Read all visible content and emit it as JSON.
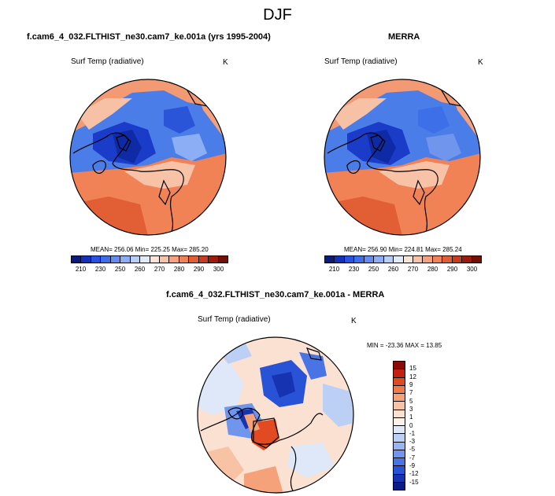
{
  "figure": {
    "title": "DJF"
  },
  "panels": {
    "model": {
      "title": "f.cam6_4_032.FLTHIST_ne30.cam7_ke.001a (yrs 1995-2004)",
      "variable": "Surf Temp (radiative)",
      "units": "K",
      "stats": "MEAN= 256.06  Min= 225.25  Max= 285.20"
    },
    "obs": {
      "title": "MERRA",
      "variable": "Surf Temp (radiative)",
      "units": "K",
      "stats": "MEAN= 256.90  Min= 224.81  Max= 285.24"
    },
    "diff": {
      "title": "f.cam6_4_032.FLTHIST_ne30.cam7_ke.001a - MERRA",
      "variable": "Surf Temp (radiative)",
      "units": "K",
      "stats": "MIN = -23.36 MAX =  13.85"
    }
  },
  "colorbars": {
    "abs": {
      "colors": [
        "#0a1a7e",
        "#1432b8",
        "#2454e0",
        "#3d6fe8",
        "#5f8df0",
        "#8caef4",
        "#b9cdf6",
        "#e3ebf8",
        "#fbe3d6",
        "#f8c2a6",
        "#f5a27c",
        "#f08256",
        "#e25f35",
        "#c83d1d",
        "#9d1b0c",
        "#741008"
      ],
      "tick_labels": [
        "210",
        "230",
        "250",
        "260",
        "270",
        "280",
        "290",
        "300"
      ]
    },
    "diff": {
      "colors": [
        "#8a0b06",
        "#c51f10",
        "#e24a22",
        "#ef7a4a",
        "#f5a17a",
        "#f8c3a5",
        "#fbe1d1",
        "#fdf2ea",
        "#dfe8f8",
        "#bcd0f5",
        "#97b6f1",
        "#6f95ec",
        "#4874e5",
        "#2853d6",
        "#1634b1",
        "#0b1c86"
      ],
      "tick_labels": [
        "15",
        "12",
        "9",
        "7",
        "5",
        "3",
        "1",
        "0",
        "-1",
        "-3",
        "-5",
        "-7",
        "-9",
        "-12",
        "-15"
      ]
    }
  }
}
